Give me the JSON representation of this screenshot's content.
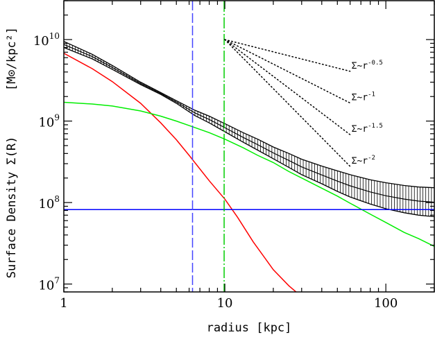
{
  "chart_data": {
    "type": "line",
    "xlabel": "radius  [kpc]",
    "ylabel": "Surface Density Σ(R)",
    "yunit": "[M⊙/kpc²]",
    "xscale": "log",
    "yscale": "log",
    "xlim": [
      1,
      200
    ],
    "ylim": [
      8000000,
      30000000000
    ],
    "grid": false,
    "x_ticks": [
      {
        "value": 1,
        "label": "1"
      },
      {
        "value": 10,
        "label": "10"
      },
      {
        "value": 100,
        "label": "100"
      }
    ],
    "y_ticks": [
      {
        "value": 10000000,
        "base": "10",
        "exp": "7"
      },
      {
        "value": 100000000,
        "base": "10",
        "exp": "8"
      },
      {
        "value": 1000000000,
        "base": "10",
        "exp": "9"
      },
      {
        "value": 10000000000,
        "base": "10",
        "exp": "10"
      }
    ],
    "series": [
      {
        "kind": "errorband",
        "color": "#000000",
        "x": [
          1,
          1.5,
          2,
          3,
          4,
          5,
          6.5,
          8,
          10,
          13,
          16,
          20,
          25,
          30,
          40,
          50,
          60,
          80,
          100,
          130,
          160,
          200
        ],
        "upper": [
          9500000000,
          6600000000,
          4800000000,
          3000000000,
          2240000000,
          1780000000,
          1360000000,
          1150000000,
          930000000,
          720000000,
          600000000,
          480000000,
          400000000,
          340000000,
          280000000,
          245000000,
          220000000,
          190000000,
          175000000,
          162000000,
          155000000,
          152000000
        ],
        "lower": [
          8000000000,
          5800000000,
          4300000000,
          2800000000,
          2120000000,
          1650000000,
          1170000000,
          950000000,
          740000000,
          550000000,
          440000000,
          345000000,
          270000000,
          220000000,
          170000000,
          137000000,
          117000000,
          96000000,
          84000000,
          75000000,
          70000000,
          67000000
        ]
      },
      {
        "kind": "line",
        "color": "#ff0000",
        "x": [
          1,
          1.5,
          2,
          3,
          4,
          5,
          6,
          8,
          10,
          12,
          15,
          20,
          25,
          30
        ],
        "values": [
          6800000000,
          4400000000,
          3050000000,
          1650000000,
          950000000,
          590000000,
          380000000,
          185000000,
          110000000,
          66000000,
          33000000,
          15000000,
          9500000,
          7000000
        ]
      },
      {
        "kind": "line",
        "color": "#00ee00",
        "x": [
          1,
          1.5,
          2,
          3,
          4,
          5,
          6,
          8,
          10,
          13,
          16,
          20,
          25,
          30,
          40,
          50,
          60,
          80,
          100,
          130,
          160,
          200
        ],
        "values": [
          1700000000,
          1620000000,
          1530000000,
          1330000000,
          1150000000,
          1000000000,
          880000000,
          720000000,
          600000000,
          470000000,
          380000000,
          310000000,
          240000000,
          200000000,
          150000000,
          120000000,
          98000000,
          72000000,
          57000000,
          43000000,
          36000000,
          29000000
        ]
      }
    ],
    "hlines": [
      {
        "y": 82000000,
        "color": "#0000ff",
        "style": "solid"
      }
    ],
    "vlines": [
      {
        "x": 6.3,
        "color": "#4444ff",
        "style": "dashed"
      },
      {
        "x": 9.9,
        "color": "#00cc00",
        "style": "dash-dot"
      }
    ],
    "slope_lines": {
      "origin": {
        "x": 10,
        "y": 10000000000
      },
      "x_end": 60,
      "color": "#000000",
      "style": "dotted",
      "slopes": [
        {
          "exponent": -0.5,
          "label_base": "Σ~r",
          "label_exp": "-0.5"
        },
        {
          "exponent": -1,
          "label_base": "Σ~r",
          "label_exp": "-1"
        },
        {
          "exponent": -1.5,
          "label_base": "Σ~r",
          "label_exp": "-1.5"
        },
        {
          "exponent": -2,
          "label_base": "Σ~r",
          "label_exp": "-2"
        }
      ]
    }
  }
}
